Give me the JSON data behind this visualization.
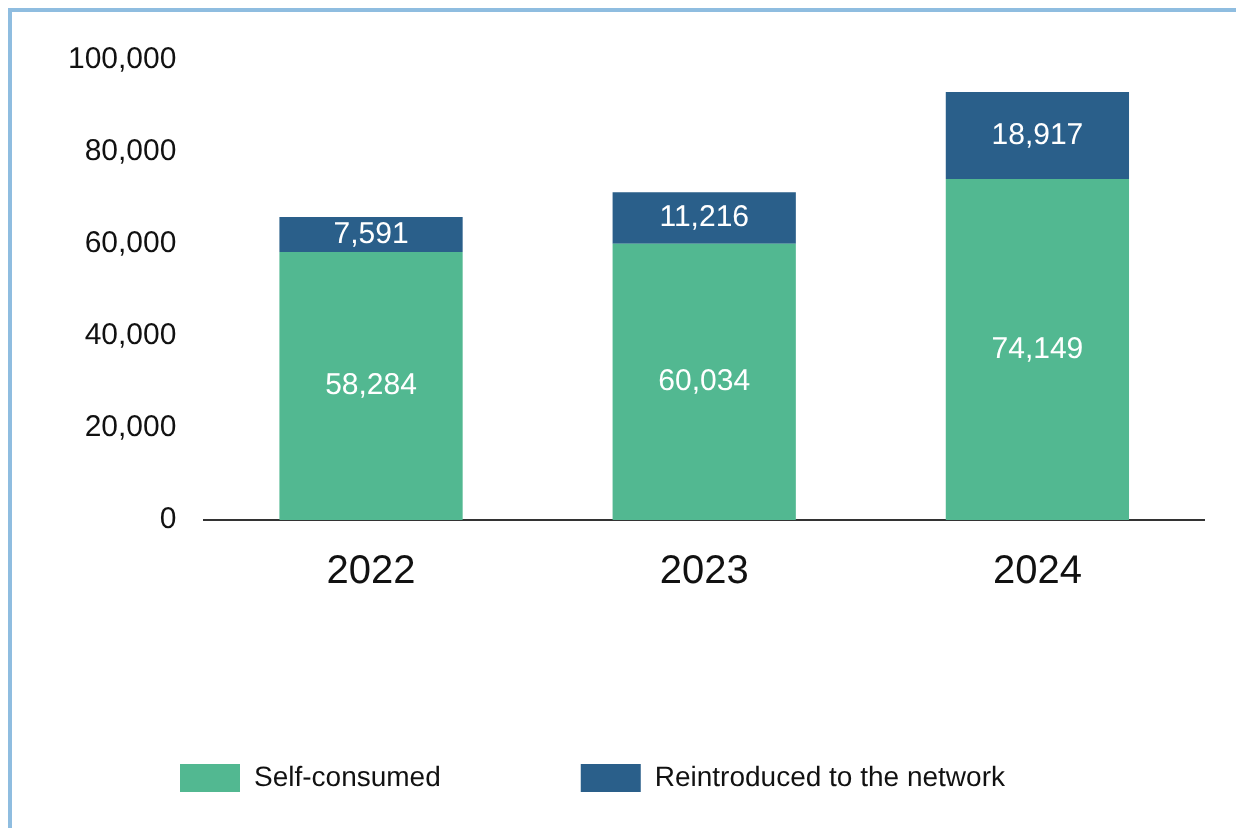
{
  "chart_data": {
    "type": "bar",
    "stacked": true,
    "categories": [
      "2022",
      "2023",
      "2024"
    ],
    "series": [
      {
        "name": "Self-consumed",
        "color": "#52b891",
        "values": [
          58284,
          60034,
          74149
        ]
      },
      {
        "name": "Reintroduced to the network",
        "color": "#2a5f8a",
        "values": [
          7591,
          11216,
          18917
        ]
      }
    ],
    "ylim": [
      0,
      100000
    ],
    "yticks": [
      {
        "value": 0,
        "label": "0"
      },
      {
        "value": 20000,
        "label": "20,000"
      },
      {
        "value": 40000,
        "label": "40,000"
      },
      {
        "value": 60000,
        "label": "60,000"
      },
      {
        "value": 80000,
        "label": "80,000"
      },
      {
        "value": 100000,
        "label": "100,000"
      }
    ],
    "value_labels": [
      [
        "58,284",
        "60,034",
        "74,149"
      ],
      [
        "7,591",
        "11,216",
        "18,917"
      ]
    ],
    "grid": false,
    "legend": "bottom"
  }
}
